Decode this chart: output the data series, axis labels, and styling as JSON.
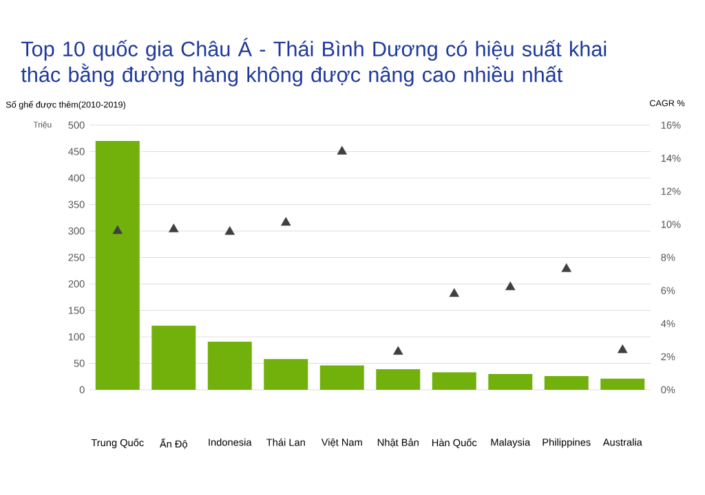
{
  "chart_data": {
    "type": "bar",
    "title": "Top 10 quốc gia Châu Á - Thái Bình Dương có hiệu suất khai thác bằng đường hàng không được nâng cao nhiều nhất",
    "ylabel": "Số ghế được thêm(2010-2019)",
    "y2label": "CAGR %",
    "annotations": [
      "Triệu"
    ],
    "categories": [
      "Trung Quốc",
      "Ấn Độ",
      "Indonesia",
      "Thái Lan",
      "Việt Nam",
      "Nhật Bản",
      "Hàn Quốc",
      "Malaysia",
      "Philippines",
      "Australia"
    ],
    "series": [
      {
        "color": "#72b10b",
        "values": [
          470,
          121,
          91,
          58,
          46,
          39,
          33,
          30,
          26,
          21
        ]
      },
      {
        "type": "scatter",
        "axis": "y2",
        "color": "#3f3f3f",
        "marker": "triangle",
        "values": [
          9.6,
          9.7,
          9.55,
          10.1,
          14.4,
          2.3,
          5.8,
          6.2,
          7.3,
          2.4
        ]
      }
    ],
    "ylim": [
      0,
      500
    ],
    "yticks": [
      0,
      50,
      100,
      150,
      200,
      250,
      300,
      350,
      400,
      450,
      500
    ],
    "y2lim": [
      0,
      16
    ],
    "y2ticks": [
      {
        "value": 0,
        "label": "0%"
      },
      {
        "value": 2,
        "label": "2%"
      },
      {
        "value": 4,
        "label": "4%"
      },
      {
        "value": 6,
        "label": "6%"
      },
      {
        "value": 8,
        "label": "8%"
      },
      {
        "value": 10,
        "label": "10%"
      },
      {
        "value": 12,
        "label": "12%"
      },
      {
        "value": 14,
        "label": "14%"
      },
      {
        "value": 16,
        "label": "16%"
      }
    ],
    "grid": "y"
  }
}
